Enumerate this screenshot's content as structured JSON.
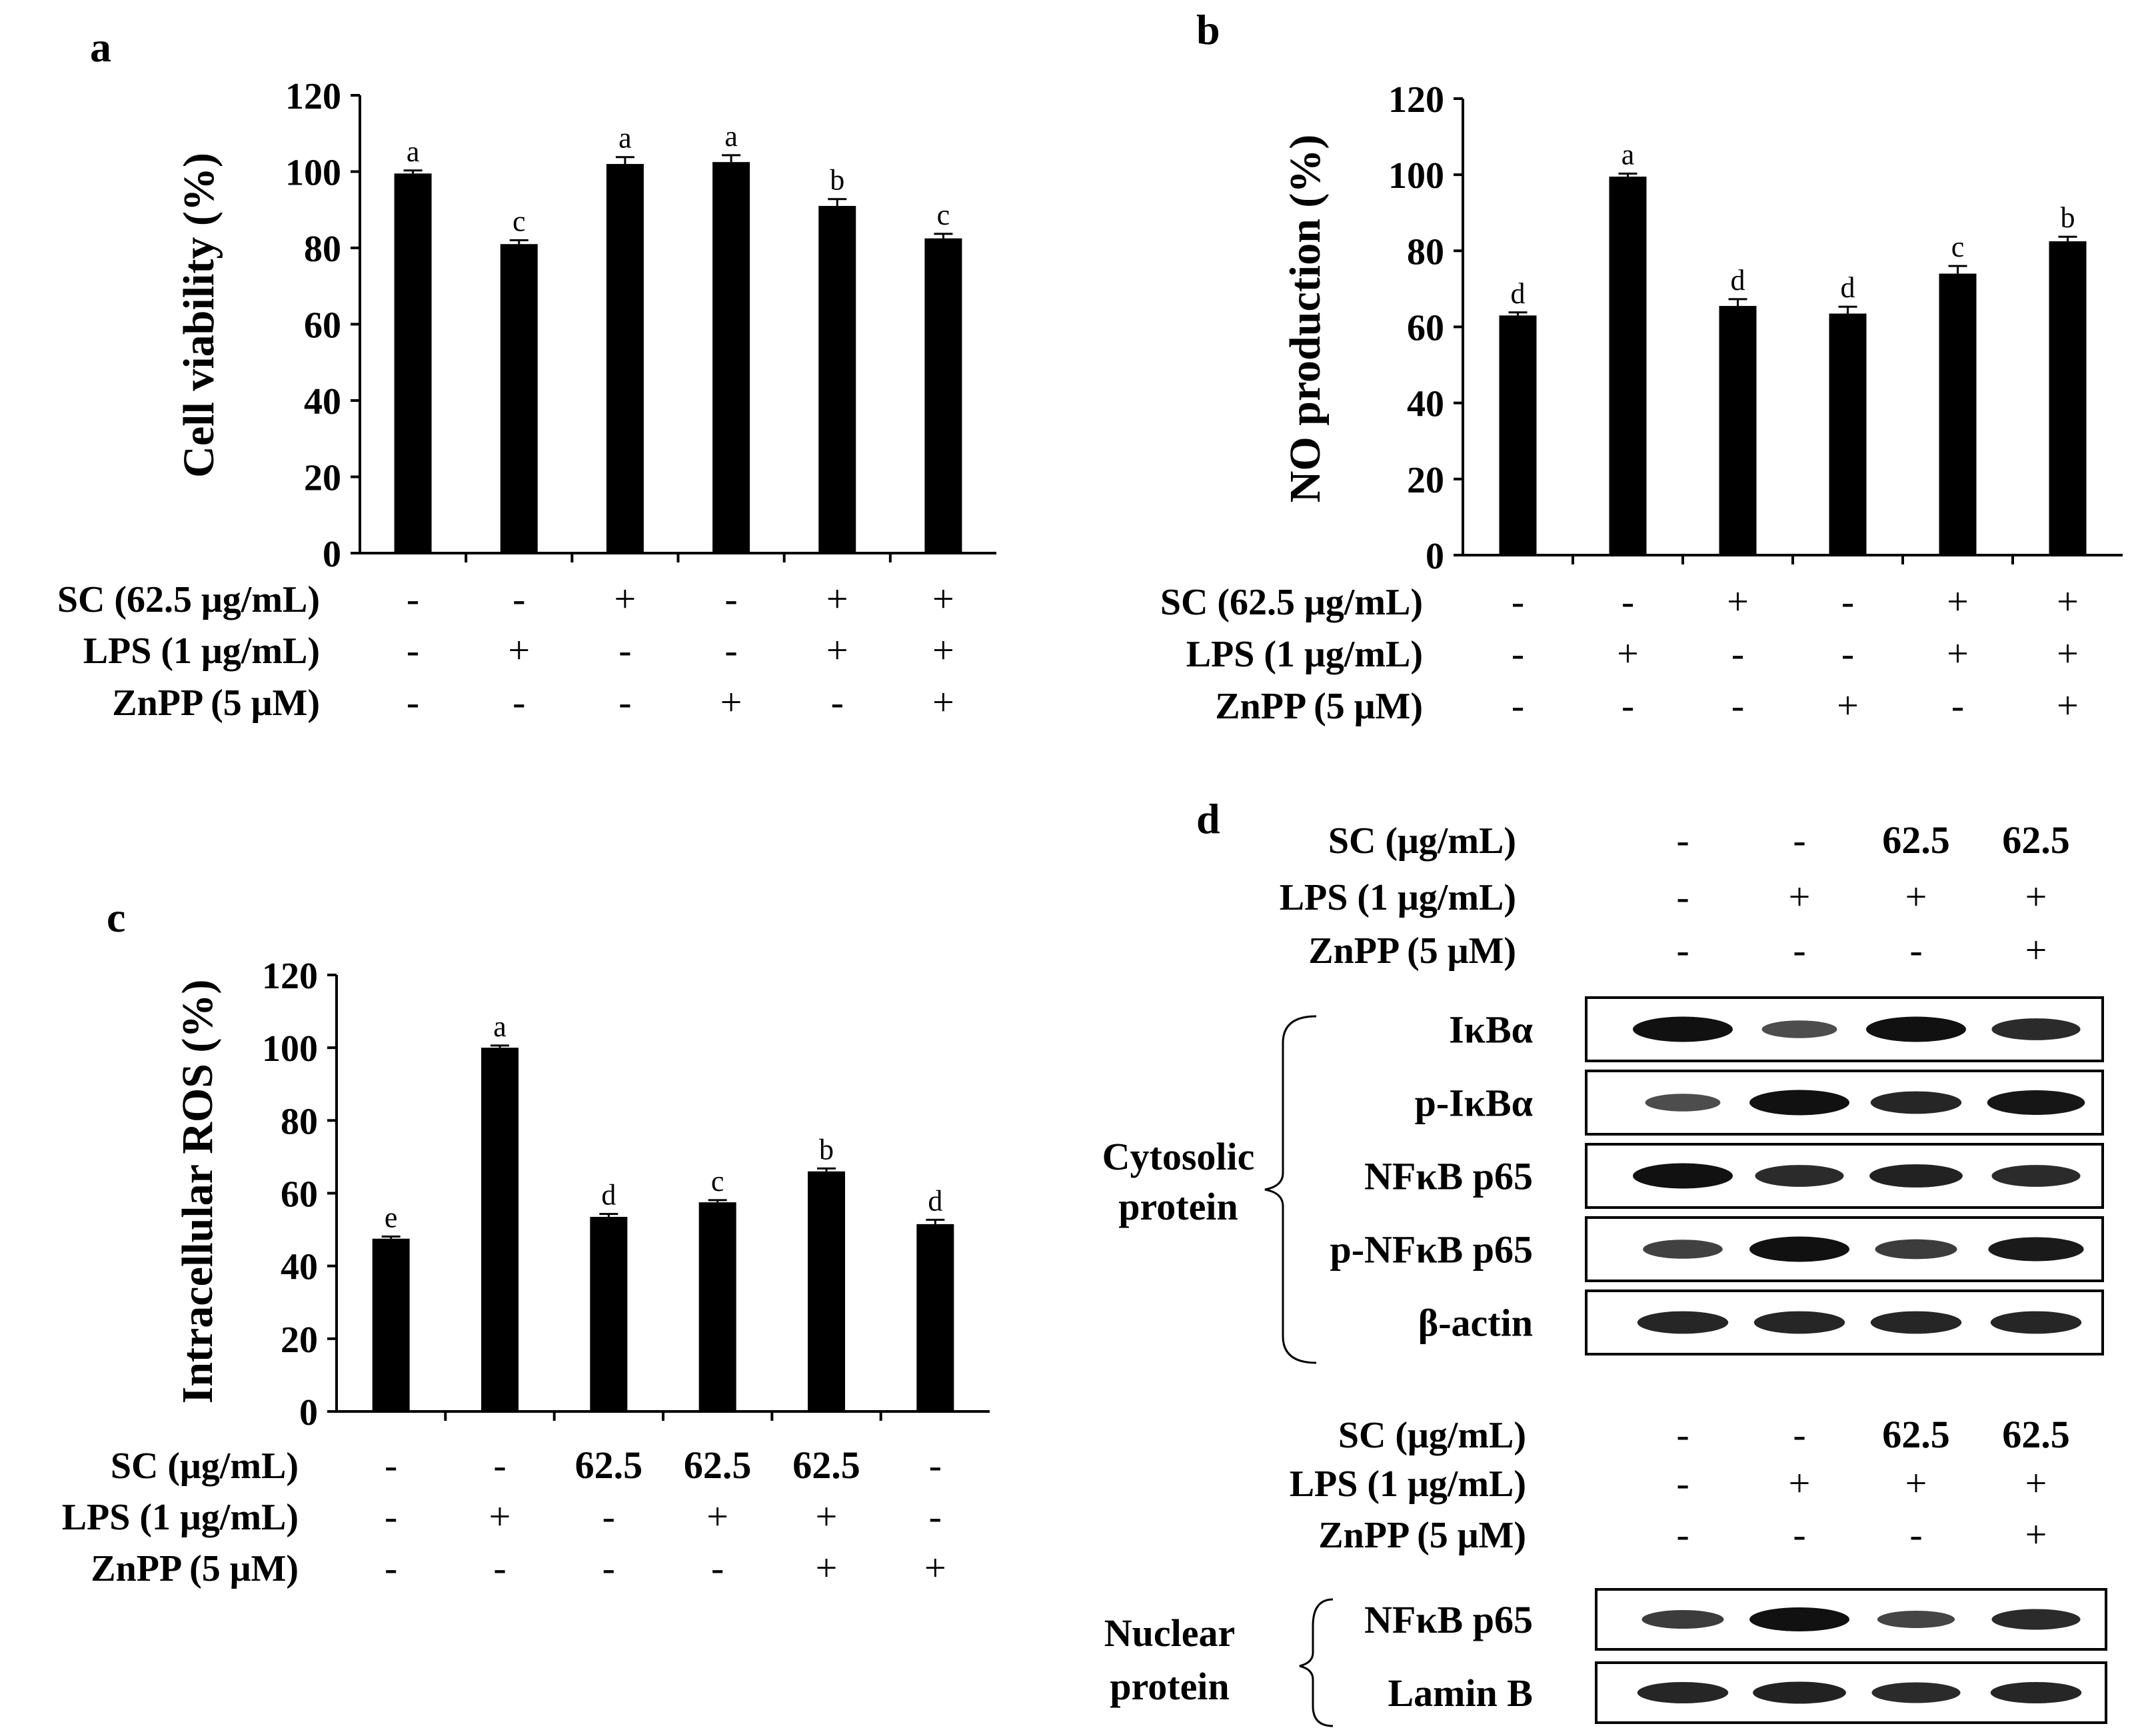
{
  "panels": {
    "a": {
      "label": "a",
      "row_labels": [
        "SC (62.5 μg/mL)",
        "LPS (1 μg/mL)",
        "ZnPP (5 μM)"
      ],
      "rows": [
        [
          "-",
          "-",
          "+",
          "-",
          "+",
          "+"
        ],
        [
          "-",
          "+",
          "-",
          "-",
          "+",
          "+"
        ],
        [
          "-",
          "-",
          "-",
          "+",
          "-",
          "+"
        ]
      ]
    },
    "b": {
      "label": "b",
      "row_labels": [
        "SC (62.5 μg/mL)",
        "LPS (1 μg/mL)",
        "ZnPP (5 μM)"
      ],
      "rows": [
        [
          "-",
          "-",
          "+",
          "-",
          "+",
          "+"
        ],
        [
          "-",
          "+",
          "-",
          "-",
          "+",
          "+"
        ],
        [
          "-",
          "-",
          "-",
          "+",
          "-",
          "+"
        ]
      ]
    },
    "c": {
      "label": "c",
      "row_labels": [
        "SC (μg/mL)",
        "LPS (1 μg/mL)",
        "ZnPP (5 μM)"
      ],
      "rows": [
        [
          "-",
          "-",
          "62.5",
          "62.5",
          "62.5",
          "-"
        ],
        [
          "-",
          "+",
          "-",
          "+",
          "+",
          "-"
        ],
        [
          "-",
          "-",
          "-",
          "-",
          "+",
          "+"
        ]
      ]
    },
    "d": {
      "label": "d",
      "top_treat": {
        "row_labels": [
          "SC (μg/mL)",
          "LPS (1 μg/mL)",
          "ZnPP (5 μM)"
        ],
        "rows": [
          [
            "-",
            "-",
            "62.5",
            "62.5"
          ],
          [
            "-",
            "+",
            "+",
            "+"
          ],
          [
            "-",
            "-",
            "-",
            "+"
          ]
        ]
      },
      "cyto_group": "Cytosolic protein",
      "cyto_group_lines": [
        "Cytosolic",
        "protein"
      ],
      "cyto_blots": [
        {
          "name": "IκBα",
          "intensity": [
            1.0,
            0.45,
            1.0,
            0.75
          ]
        },
        {
          "name": "p-IκBα",
          "intensity": [
            0.45,
            1.0,
            0.8,
            0.95
          ]
        },
        {
          "name": "NFκB p65",
          "intensity": [
            1.0,
            0.75,
            0.85,
            0.75
          ]
        },
        {
          "name": "p-NFκB p65",
          "intensity": [
            0.55,
            1.0,
            0.6,
            0.9
          ]
        },
        {
          "name": "β-actin",
          "intensity": [
            0.8,
            0.8,
            0.8,
            0.8
          ]
        }
      ],
      "bottom_treat": {
        "row_labels": [
          "SC (μg/mL)",
          "LPS (1 μg/mL)",
          "ZnPP (5 μM)"
        ],
        "rows": [
          [
            "-",
            "-",
            "62.5",
            "62.5"
          ],
          [
            "-",
            "+",
            "+",
            "+"
          ],
          [
            "-",
            "-",
            "-",
            "+"
          ]
        ]
      },
      "nuc_group": "Nuclear protein",
      "nuc_group_lines": [
        "Nuclear",
        "protein"
      ],
      "nuc_blots": [
        {
          "name": "NFκB p65",
          "intensity": [
            0.6,
            1.0,
            0.5,
            0.75
          ]
        },
        {
          "name": "Lamin B",
          "intensity": [
            0.8,
            0.85,
            0.75,
            0.8
          ]
        }
      ]
    }
  },
  "chart_data": [
    {
      "type": "bar",
      "panel": "a",
      "title": "",
      "xlabel": "",
      "ylabel": "Cell viability (%)",
      "ylim": [
        0,
        120
      ],
      "yticks": [
        0,
        20,
        40,
        60,
        80,
        100,
        120
      ],
      "values": [
        99.5,
        81,
        102,
        102.5,
        91,
        82.5
      ],
      "errors": [
        0.8,
        1,
        1.8,
        1.8,
        1.8,
        1.2
      ],
      "letters": [
        "a",
        "c",
        "a",
        "a",
        "b",
        "c"
      ]
    },
    {
      "type": "bar",
      "panel": "b",
      "title": "",
      "xlabel": "",
      "ylabel": "NO production  (%)",
      "ylim": [
        0,
        120
      ],
      "yticks": [
        0,
        20,
        40,
        60,
        80,
        100,
        120
      ],
      "values": [
        63,
        99.5,
        65.5,
        63.5,
        74,
        82.5
      ],
      "errors": [
        0.8,
        0.8,
        1.8,
        1.8,
        2,
        1.2
      ],
      "letters": [
        "d",
        "a",
        "d",
        "d",
        "c",
        "b"
      ]
    },
    {
      "type": "bar",
      "panel": "c",
      "title": "",
      "xlabel": "",
      "ylabel": "Intracellular  ROS (%)",
      "ylim": [
        0,
        120
      ],
      "yticks": [
        0,
        20,
        40,
        60,
        80,
        100,
        120
      ],
      "values": [
        47.5,
        100,
        53.5,
        57.5,
        66,
        51.5
      ],
      "errors": [
        0.6,
        0.6,
        0.8,
        0.6,
        0.8,
        1.2
      ],
      "letters": [
        "e",
        "a",
        "d",
        "c",
        "b",
        "d"
      ]
    }
  ]
}
